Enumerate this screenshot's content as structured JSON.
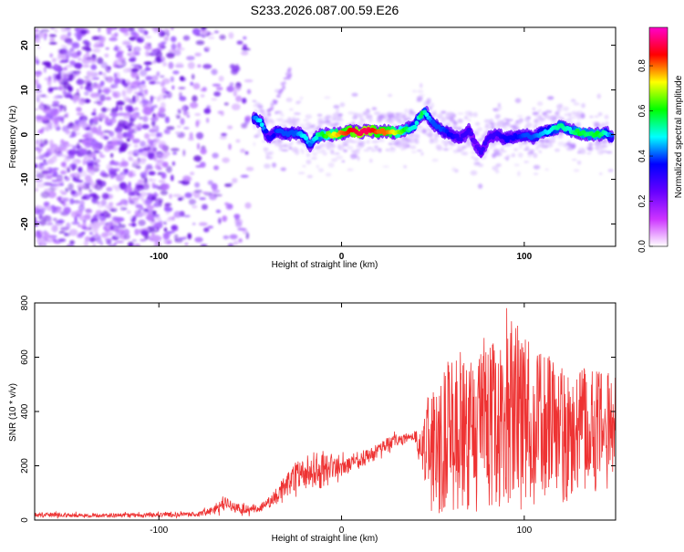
{
  "figure_title": "S233.2026.087.00.59.E26",
  "chart_data": [
    {
      "type": "heatmap",
      "title": "S233.2026.087.00.59.E26",
      "xlabel": "Height of straight line (km)",
      "ylabel": "Frequency (Hz)",
      "xlim": [
        -168,
        150
      ],
      "ylim": [
        -25,
        24
      ],
      "x_ticks": [
        -100,
        0,
        100
      ],
      "y_ticks": [
        -20,
        -10,
        0,
        10,
        20
      ],
      "colorbar": {
        "label": "Normalized spectral amplitude",
        "range": [
          0.0,
          0.97
        ],
        "ticks": [
          "0.0",
          "0.2",
          "0.4",
          "0.6",
          "0.8"
        ],
        "colormap": [
          "#ffffff",
          "#cc33ff",
          "#6600ff",
          "#0000ff",
          "#00ffff",
          "#00ff00",
          "#ffff00",
          "#ff0000",
          "#ff00cc"
        ]
      },
      "scatter_noise_region_km": [
        -168,
        -50
      ],
      "ridge": {
        "x": [
          -48,
          -44,
          -40,
          -35,
          -30,
          -25,
          -20,
          -17,
          -14,
          -10,
          -5,
          0,
          5,
          10,
          15,
          20,
          25,
          30,
          35,
          38,
          40,
          42,
          44,
          46,
          50,
          55,
          60,
          65,
          70,
          73,
          76,
          80,
          85,
          90,
          95,
          100,
          105,
          110,
          115,
          120,
          125,
          130,
          135,
          140,
          145,
          148
        ],
        "y": [
          3.5,
          3.0,
          -1.0,
          1.0,
          0.0,
          0.5,
          -0.5,
          -2.5,
          -0.5,
          0.0,
          0.0,
          0.3,
          0.8,
          0.5,
          1.0,
          0.5,
          0.7,
          0.5,
          1.0,
          1.5,
          2.0,
          3.5,
          4.5,
          5.0,
          2.5,
          1.0,
          0.0,
          -1.0,
          1.0,
          -2.0,
          -4.0,
          -1.0,
          0.0,
          -1.0,
          -0.5,
          0.0,
          -0.5,
          0.5,
          1.0,
          2.0,
          1.0,
          0.5,
          0.0,
          0.0,
          0.5,
          -0.5
        ],
        "amplitude": [
          0.4,
          0.5,
          0.3,
          0.4,
          0.4,
          0.4,
          0.5,
          0.4,
          0.5,
          0.6,
          0.7,
          0.8,
          0.85,
          0.9,
          0.9,
          0.8,
          0.8,
          0.7,
          0.6,
          0.5,
          0.5,
          0.5,
          0.6,
          0.5,
          0.4,
          0.4,
          0.35,
          0.3,
          0.3,
          0.25,
          0.3,
          0.3,
          0.3,
          0.35,
          0.35,
          0.4,
          0.4,
          0.45,
          0.5,
          0.55,
          0.5,
          0.6,
          0.55,
          0.6,
          0.5,
          0.4
        ]
      }
    },
    {
      "type": "line",
      "xlabel": "Height of straight line (km)",
      "ylabel": "SNR (10 * v/v)",
      "xlim": [
        -168,
        150
      ],
      "ylim": [
        0,
        800
      ],
      "x_ticks": [
        -100,
        0,
        100
      ],
      "y_ticks": [
        0,
        200,
        400,
        600,
        800
      ],
      "series": [
        {
          "name": "SNR",
          "color": "#ee3333",
          "x": [
            -168,
            -140,
            -110,
            -80,
            -70,
            -65,
            -60,
            -55,
            -45,
            -40,
            -35,
            -30,
            -25,
            -20,
            -15,
            -10,
            -5,
            0,
            5,
            10,
            15,
            20,
            25,
            30,
            35,
            40,
            45,
            50,
            60,
            70,
            80,
            90,
            100,
            110,
            120,
            130,
            140,
            150
          ],
          "envelope_low": [
            5,
            5,
            5,
            5,
            10,
            15,
            15,
            10,
            15,
            25,
            40,
            60,
            70,
            80,
            90,
            110,
            125,
            130,
            150,
            170,
            190,
            210,
            240,
            260,
            270,
            280,
            80,
            20,
            15,
            20,
            20,
            30,
            40,
            60,
            60,
            80,
            100,
            120
          ],
          "envelope_high": [
            35,
            30,
            30,
            35,
            60,
            110,
            90,
            70,
            70,
            100,
            150,
            200,
            250,
            260,
            250,
            280,
            260,
            250,
            260,
            260,
            280,
            300,
            320,
            330,
            330,
            340,
            420,
            520,
            600,
            650,
            680,
            800,
            680,
            640,
            560,
            560,
            560,
            540
          ]
        }
      ]
    }
  ]
}
